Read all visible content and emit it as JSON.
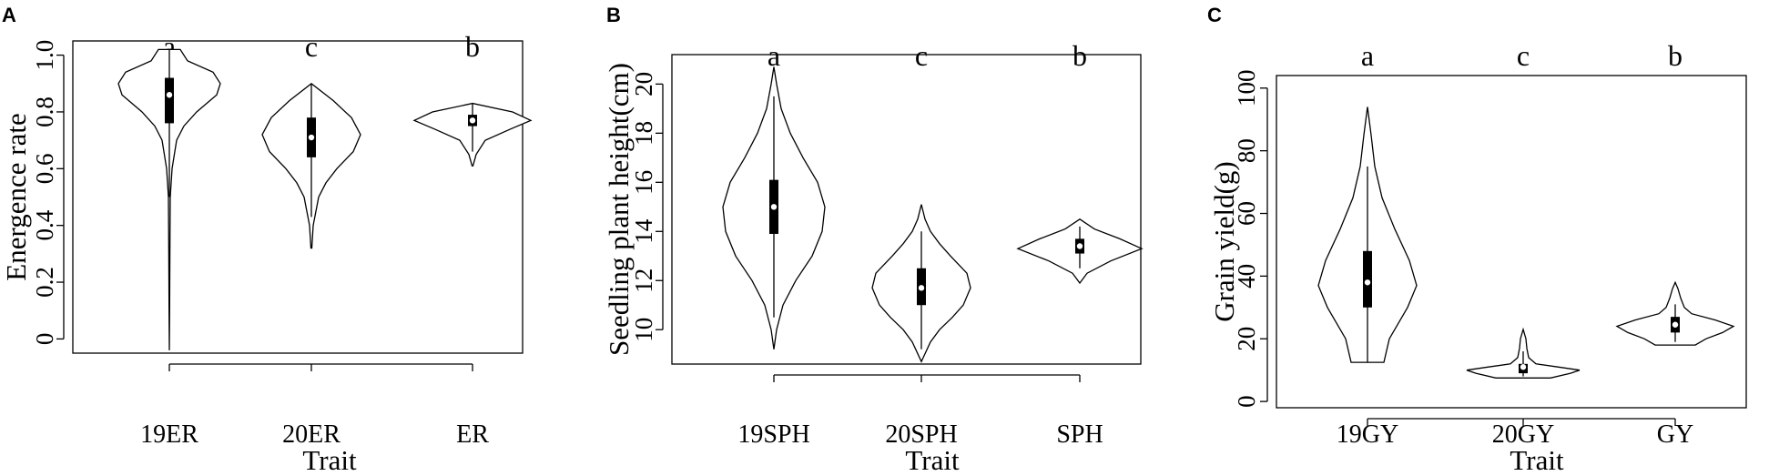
{
  "chart_data": [
    {
      "panel": "A",
      "type": "violin",
      "ylabel": "Energence rate",
      "xlabel": "Trait",
      "ylim": [
        -0.05,
        1.05
      ],
      "yticks": [
        0,
        0.2,
        0.4,
        0.6,
        0.8,
        1.0
      ],
      "ytick_labels": [
        "0",
        "0.2",
        "0.4",
        "0.6",
        "0.8",
        "1.0"
      ],
      "categories": [
        "19ER",
        "20ER",
        "ER"
      ],
      "significance": [
        "a",
        "c",
        "b"
      ],
      "violins": [
        {
          "min": -0.04,
          "max": 1.02,
          "q1": 0.76,
          "median": 0.86,
          "q3": 0.92,
          "whisker_low": 0.5,
          "whisker_high": 1.02,
          "profile": [
            [
              -0.04,
              0.0
            ],
            [
              0.1,
              0.3
            ],
            [
              0.3,
              0.6
            ],
            [
              0.5,
              1.0
            ],
            [
              0.6,
              3
            ],
            [
              0.7,
              8
            ],
            [
              0.75,
              16
            ],
            [
              0.8,
              30
            ],
            [
              0.86,
              52
            ],
            [
              0.9,
              56
            ],
            [
              0.94,
              48
            ],
            [
              0.98,
              20
            ],
            [
              1.02,
              12
            ]
          ]
        },
        {
          "min": 0.32,
          "max": 0.9,
          "q1": 0.64,
          "median": 0.71,
          "q3": 0.78,
          "whisker_low": 0.43,
          "whisker_high": 0.9,
          "profile": [
            [
              0.32,
              0.5
            ],
            [
              0.4,
              2
            ],
            [
              0.5,
              8
            ],
            [
              0.55,
              16
            ],
            [
              0.6,
              28
            ],
            [
              0.66,
              46
            ],
            [
              0.72,
              54
            ],
            [
              0.78,
              44
            ],
            [
              0.84,
              24
            ],
            [
              0.9,
              0
            ]
          ]
        },
        {
          "min": 0.61,
          "max": 0.83,
          "q1": 0.75,
          "median": 0.77,
          "q3": 0.79,
          "whisker_low": 0.66,
          "whisker_high": 0.83,
          "profile": [
            [
              0.61,
              0.5
            ],
            [
              0.65,
              4
            ],
            [
              0.7,
              14
            ],
            [
              0.74,
              42
            ],
            [
              0.77,
              64
            ],
            [
              0.8,
              44
            ],
            [
              0.83,
              0
            ]
          ]
        }
      ]
    },
    {
      "panel": "B",
      "type": "violin",
      "ylabel": "Seedling plant height(cm)",
      "xlabel": "Trait",
      "ylim": [
        8.6,
        21.2
      ],
      "yticks": [
        10,
        12,
        14,
        16,
        18,
        20
      ],
      "ytick_labels": [
        "10",
        "12",
        "14",
        "16",
        "18",
        "20"
      ],
      "categories": [
        "19SPH",
        "20SPH",
        "SPH"
      ],
      "significance": [
        "a",
        "c",
        "b"
      ],
      "violins": [
        {
          "min": 9.2,
          "max": 20.7,
          "q1": 13.9,
          "median": 15.0,
          "q3": 16.1,
          "whisker_low": 10.5,
          "whisker_high": 19.5,
          "profile": [
            [
              9.2,
              0
            ],
            [
              10,
              3
            ],
            [
              11,
              10
            ],
            [
              12,
              24
            ],
            [
              13,
              42
            ],
            [
              14,
              53
            ],
            [
              15,
              56
            ],
            [
              16,
              48
            ],
            [
              17,
              32
            ],
            [
              18,
              18
            ],
            [
              19,
              8
            ],
            [
              20,
              3
            ],
            [
              20.7,
              0
            ]
          ]
        },
        {
          "min": 8.7,
          "max": 15.1,
          "q1": 11.0,
          "median": 11.7,
          "q3": 12.5,
          "whisker_low": 9.2,
          "whisker_high": 14.0,
          "profile": [
            [
              8.7,
              0
            ],
            [
              9.5,
              10
            ],
            [
              10,
              20
            ],
            [
              10.5,
              34
            ],
            [
              11,
              46
            ],
            [
              11.7,
              54
            ],
            [
              12.3,
              50
            ],
            [
              13,
              32
            ],
            [
              13.5,
              20
            ],
            [
              14,
              10
            ],
            [
              14.5,
              4
            ],
            [
              15.1,
              0
            ]
          ]
        },
        {
          "min": 11.9,
          "max": 14.5,
          "q1": 13.1,
          "median": 13.4,
          "q3": 13.7,
          "whisker_low": 12.5,
          "whisker_high": 14.2,
          "profile": [
            [
              11.9,
              0
            ],
            [
              12.3,
              8
            ],
            [
              12.8,
              34
            ],
            [
              13.3,
              68
            ],
            [
              13.7,
              44
            ],
            [
              14.1,
              16
            ],
            [
              14.5,
              0
            ]
          ]
        }
      ]
    },
    {
      "panel": "C",
      "type": "violin",
      "ylabel": "Grain yield(g)",
      "xlabel": "Trait",
      "ylim": [
        -2,
        104
      ],
      "yticks": [
        0,
        20,
        40,
        60,
        80,
        100
      ],
      "ytick_labels": [
        "0",
        "20",
        "40",
        "60",
        "80",
        "100"
      ],
      "categories": [
        "19GY",
        "20GY",
        "GY"
      ],
      "significance": [
        "a",
        "c",
        "b"
      ],
      "violins": [
        {
          "min": 12.5,
          "max": 94,
          "q1": 30,
          "median": 38,
          "q3": 48,
          "whisker_low": 12.5,
          "whisker_high": 75,
          "profile": [
            [
              12.5,
              18
            ],
            [
              20,
              24
            ],
            [
              30,
              44
            ],
            [
              37,
              54
            ],
            [
              45,
              46
            ],
            [
              55,
              30
            ],
            [
              65,
              16
            ],
            [
              75,
              8
            ],
            [
              85,
              4
            ],
            [
              94,
              0
            ]
          ]
        },
        {
          "min": 7.5,
          "max": 23,
          "q1": 9,
          "median": 11,
          "q3": 12,
          "whisker_low": 8,
          "whisker_high": 16,
          "profile": [
            [
              7.5,
              30
            ],
            [
              9,
              52
            ],
            [
              10,
              62
            ],
            [
              11,
              38
            ],
            [
              12,
              14
            ],
            [
              14,
              6
            ],
            [
              17,
              4
            ],
            [
              20,
              3
            ],
            [
              23,
              0
            ]
          ]
        },
        {
          "min": 18,
          "max": 38,
          "q1": 22,
          "median": 24.5,
          "q3": 27,
          "whisker_low": 19,
          "whisker_high": 31,
          "profile": [
            [
              18,
              22
            ],
            [
              20,
              34
            ],
            [
              22,
              52
            ],
            [
              24,
              64
            ],
            [
              26,
              44
            ],
            [
              28,
              18
            ],
            [
              30,
              10
            ],
            [
              33,
              6
            ],
            [
              36,
              3
            ],
            [
              38,
              0
            ]
          ]
        }
      ]
    }
  ]
}
